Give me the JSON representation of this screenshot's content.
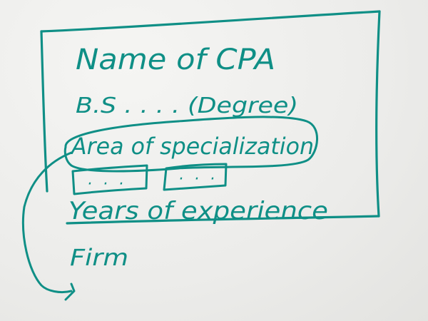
{
  "ink_color": "#0f8f86",
  "sketch": {
    "title": "Name of CPA",
    "degree_line": "B.S . . . .  (Degree)",
    "area_label": "Area of specialization",
    "box_placeholders": [
      "· · ·",
      "· · ·"
    ],
    "years_label": "Years of experience",
    "firm_label": "Firm"
  }
}
